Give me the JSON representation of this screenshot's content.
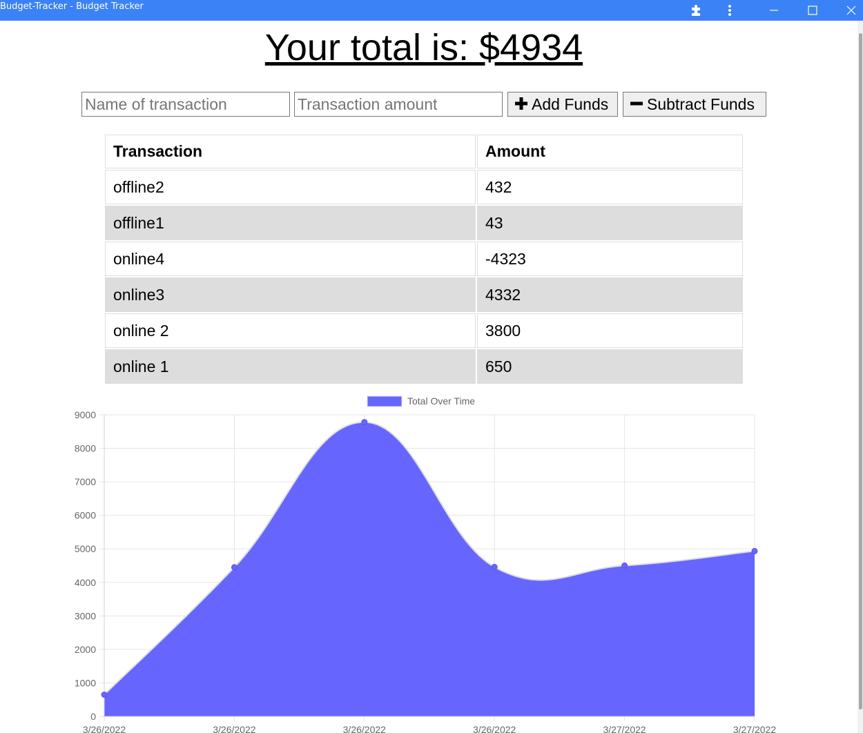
{
  "window": {
    "title": "Budget-Tracker - Budget Tracker",
    "controls": [
      "extensions-icon",
      "menu-icon",
      "minimize-icon",
      "maximize-icon",
      "close-icon"
    ]
  },
  "header": {
    "total_label": "Your total is: $",
    "total_value": "4934"
  },
  "form": {
    "name_placeholder": "Name of transaction",
    "amount_placeholder": "Transaction amount",
    "add_label": "Add Funds",
    "subtract_label": "Subtract Funds"
  },
  "table": {
    "headers": [
      "Transaction",
      "Amount"
    ],
    "rows": [
      {
        "name": "offline2",
        "amount": "432"
      },
      {
        "name": "offline1",
        "amount": "43"
      },
      {
        "name": "online4",
        "amount": "-4323"
      },
      {
        "name": "online3",
        "amount": "4332"
      },
      {
        "name": "online 2",
        "amount": "3800"
      },
      {
        "name": "online 1",
        "amount": "650"
      }
    ]
  },
  "chart_data": {
    "type": "area",
    "title": "",
    "legend": "top",
    "grid": true,
    "x": [
      "3/26/2022",
      "3/26/2022",
      "3/26/2022",
      "3/26/2022",
      "3/27/2022",
      "3/27/2022"
    ],
    "series": [
      {
        "name": "Total Over Time",
        "values": [
          650,
          4450,
          8782,
          4459,
          4502,
          4934
        ],
        "color": "#6666ff"
      }
    ],
    "ylim": [
      0,
      9000
    ],
    "yticks": [
      0,
      1000,
      2000,
      3000,
      4000,
      5000,
      6000,
      7000,
      8000,
      9000
    ]
  }
}
